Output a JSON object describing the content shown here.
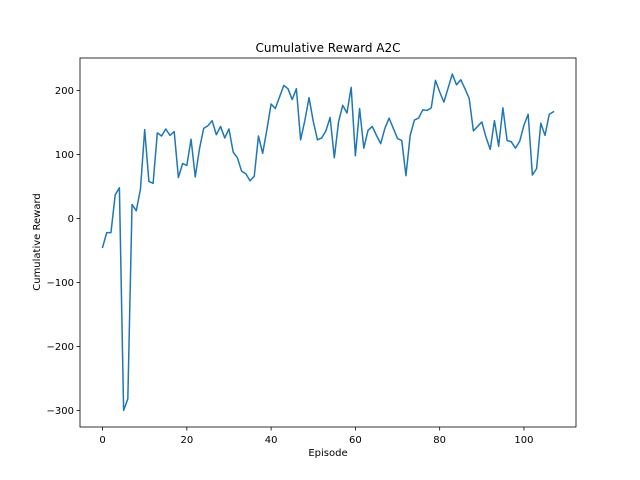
{
  "chart_data": {
    "type": "line",
    "title": "Cumulative Reward A2C",
    "xlabel": "Episode",
    "ylabel": "Cumulative Reward",
    "xlim": [
      -5.35,
      112.35
    ],
    "ylim": [
      -326,
      251
    ],
    "xticks": [
      0,
      20,
      40,
      60,
      80,
      100
    ],
    "yticks": [
      -300,
      -200,
      -100,
      0,
      100,
      200
    ],
    "ytick_labels": [
      "−300",
      "−200",
      "−100",
      "0",
      "100",
      "200"
    ],
    "grid": false,
    "series": [
      {
        "color": "#1f77b4",
        "x": [
          0,
          1,
          2,
          3,
          4,
          5,
          6,
          7,
          8,
          9,
          10,
          11,
          12,
          13,
          14,
          15,
          16,
          17,
          18,
          19,
          20,
          21,
          22,
          23,
          24,
          25,
          26,
          27,
          28,
          29,
          30,
          31,
          32,
          33,
          34,
          35,
          36,
          37,
          38,
          39,
          40,
          41,
          42,
          43,
          44,
          45,
          46,
          47,
          48,
          49,
          50,
          51,
          52,
          53,
          54,
          55,
          56,
          57,
          58,
          59,
          60,
          61,
          62,
          63,
          64,
          65,
          66,
          67,
          68,
          69,
          70,
          71,
          72,
          73,
          74,
          75,
          76,
          77,
          78,
          79,
          80,
          81,
          82,
          83,
          84,
          85,
          86,
          87,
          88,
          89,
          90,
          91,
          92,
          93,
          94,
          95,
          96,
          97,
          98,
          99,
          100,
          101,
          102,
          103,
          104,
          105,
          106,
          107
        ],
        "y": [
          -45,
          -22,
          -22,
          37,
          48,
          -300,
          -282,
          22,
          12,
          46,
          139,
          58,
          55,
          134,
          129,
          140,
          130,
          136,
          64,
          86,
          83,
          124,
          65,
          109,
          141,
          145,
          153,
          131,
          144,
          126,
          140,
          104,
          95,
          74,
          70,
          59,
          66,
          129,
          102,
          139,
          179,
          172,
          190,
          208,
          203,
          186,
          203,
          123,
          153,
          189,
          152,
          123,
          126,
          137,
          158,
          95,
          151,
          177,
          165,
          205,
          98,
          172,
          110,
          138,
          144,
          130,
          117,
          141,
          157,
          141,
          125,
          122,
          67,
          130,
          154,
          157,
          170,
          169,
          173,
          216,
          198,
          182,
          204,
          226,
          209,
          217,
          203,
          188,
          137,
          144,
          151,
          127,
          108,
          153,
          113,
          173,
          122,
          120,
          110,
          121,
          146,
          163,
          68,
          78,
          149,
          130,
          163,
          167
        ]
      }
    ]
  }
}
